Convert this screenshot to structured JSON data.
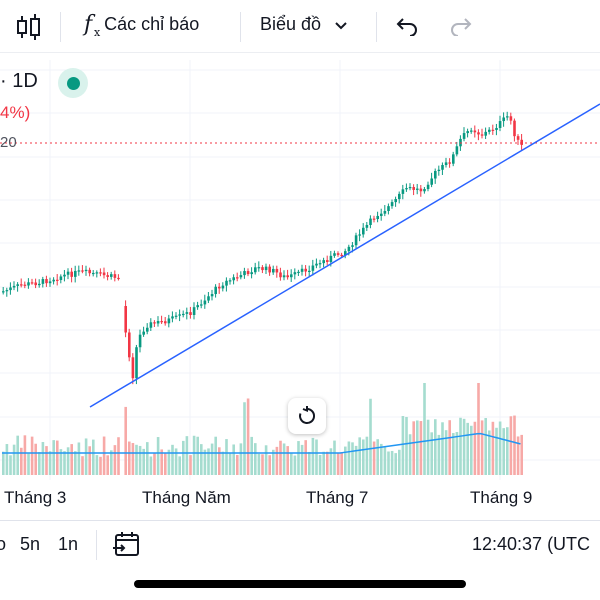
{
  "toolbar": {
    "indicators_label": "Các chỉ báo",
    "chart_type_label": "Biểu đồ",
    "icons": [
      "candlestick-icon",
      "fx-icon",
      "chevron-down-icon",
      "undo-icon",
      "redo-icon"
    ]
  },
  "legend": {
    "interval": "· 1D",
    "change_fragment": "4%)",
    "price_fragment": "20"
  },
  "colors": {
    "up": "#089981",
    "down": "#f23645",
    "trendline": "#2962ff",
    "volume_ma": "#2196f3",
    "price_line": "#f23645"
  },
  "x_axis": {
    "labels": [
      "Tháng 3",
      "Tháng Năm",
      "Tháng 7",
      "Tháng 9"
    ]
  },
  "bottom_bar": {
    "ranges": [
      "o",
      "5n",
      "1n"
    ],
    "clock": "12:40:37 (UTC"
  },
  "chart_data": {
    "type": "candlestick",
    "x": [
      "Tháng 3",
      "Tháng Năm",
      "Tháng 7",
      "Tháng 9"
    ],
    "series": [
      {
        "name": "",
        "type": "candlestick"
      },
      {
        "name": "",
        "type": "volume"
      },
      {
        "name": "",
        "type": "trendline"
      }
    ],
    "price_line": "20"
  }
}
